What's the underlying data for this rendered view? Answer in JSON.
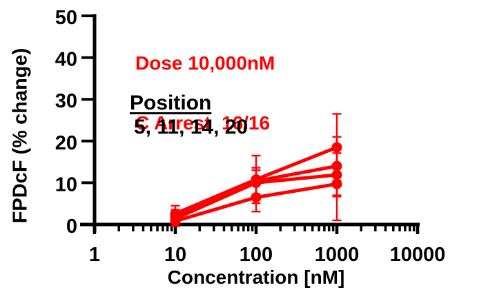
{
  "annotations": {
    "dose": {
      "line1": "Dose 10,000nM",
      "line2": "C Arrest  16/16"
    },
    "position": {
      "title": "Position",
      "values": "5, 11, 14, 20"
    }
  },
  "colors": {
    "series": "#FF0000",
    "annotation": "#FF0000",
    "axis": "#000000",
    "background": "#FFFFFF"
  },
  "chart_data": {
    "type": "line",
    "title": "",
    "xlabel": "Concentration [nM]",
    "ylabel": "FPDcF (% change)",
    "x_scale": "log",
    "xlim": [
      1,
      10000
    ],
    "ylim": [
      0,
      50
    ],
    "x_ticks": [
      1,
      10,
      100,
      1000,
      10000
    ],
    "x_tick_labels": [
      "1",
      "10",
      "100",
      "1000",
      "10000"
    ],
    "y_ticks": [
      0,
      10,
      20,
      30,
      40,
      50
    ],
    "y_tick_labels": [
      "0",
      "10",
      "20",
      "30",
      "40",
      "50"
    ],
    "grid": false,
    "legend": "none",
    "marker": "circle",
    "series_color": "#FF0000",
    "x": [
      10,
      100,
      1000
    ],
    "series": [
      {
        "name": "Position 5",
        "values": [
          2.6,
          10.8,
          18.5
        ],
        "errors": [
          1.9,
          5.7,
          8.0
        ]
      },
      {
        "name": "Position 11",
        "values": [
          2.0,
          10.4,
          14.0
        ],
        "errors": [
          1.5,
          3.2,
          7.0
        ]
      },
      {
        "name": "Position 14",
        "values": [
          1.4,
          10.0,
          11.9
        ],
        "errors": [
          1.2,
          3.0,
          5.2
        ]
      },
      {
        "name": "Position 20",
        "values": [
          0.8,
          6.5,
          9.7
        ],
        "errors": [
          1.2,
          3.4,
          8.7
        ]
      }
    ]
  }
}
